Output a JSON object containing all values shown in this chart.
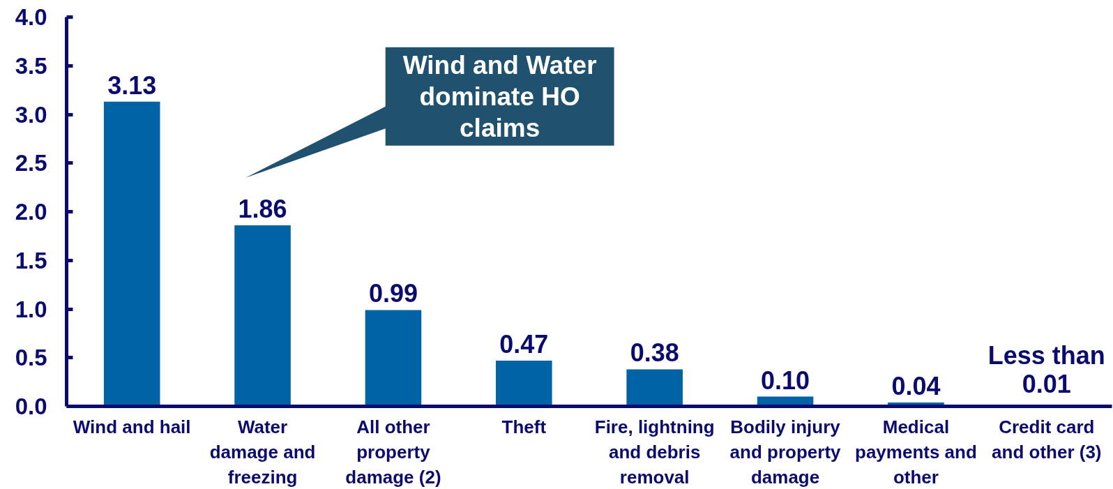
{
  "chart_data": {
    "type": "bar",
    "categories": [
      "Wind and hail",
      "Water damage and freezing",
      "All other property damage (2)",
      "Theft",
      "Fire, lightning and debris removal",
      "Bodily injury and property damage",
      "Medical payments and other",
      "Credit card and other (3)"
    ],
    "values": [
      3.13,
      1.86,
      0.99,
      0.47,
      0.38,
      0.1,
      0.04,
      0.005
    ],
    "value_labels": [
      "3.13",
      "1.86",
      "0.99",
      "0.47",
      "0.38",
      "0.10",
      "0.04",
      "Less than 0.01"
    ],
    "color": "#0063a5",
    "ylim": [
      0,
      4.0
    ],
    "yticks": [
      {
        "value": 0,
        "label": "0.0"
      },
      {
        "value": 0.5,
        "label": "0.5"
      },
      {
        "value": 1.0,
        "label": "1.0"
      },
      {
        "value": 1.5,
        "label": "1.5"
      },
      {
        "value": 2.0,
        "label": "2.0"
      },
      {
        "value": 2.5,
        "label": "2.5"
      },
      {
        "value": 3.0,
        "label": "3.0"
      },
      {
        "value": 3.5,
        "label": "3.5"
      },
      {
        "value": 4.0,
        "label": "4.0"
      }
    ],
    "grid": false,
    "annotations": [
      "Wind and Water dominate HO claims"
    ]
  }
}
